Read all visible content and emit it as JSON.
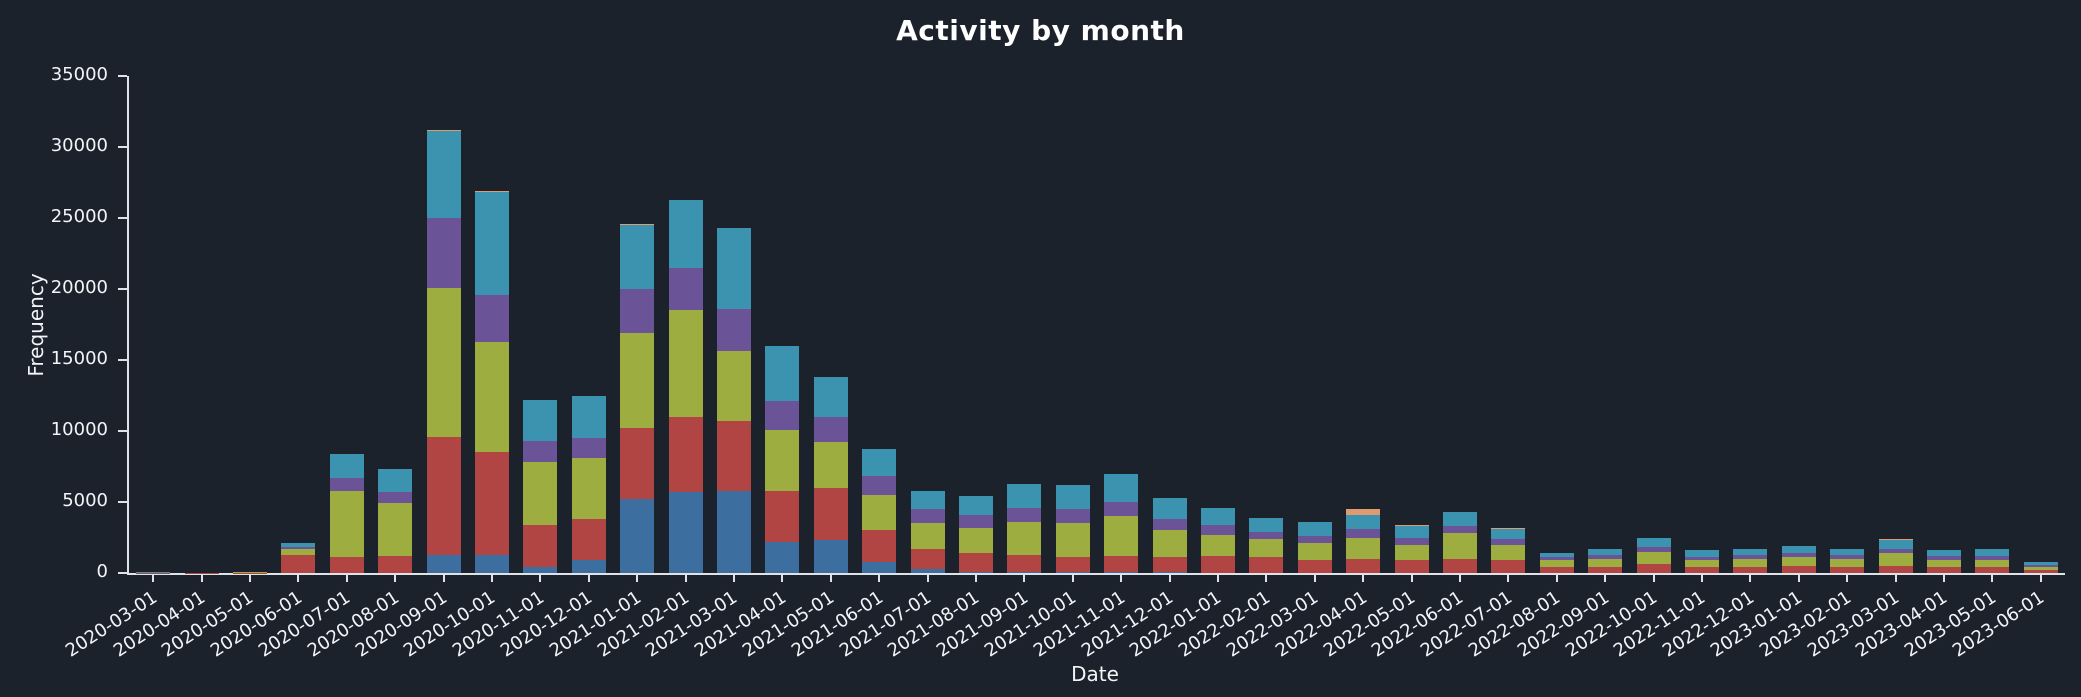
{
  "chart_data": {
    "type": "bar",
    "stacked": true,
    "title": "Activity by month",
    "xlabel": "Date",
    "ylabel": "Frequency",
    "ylim": [
      0,
      35000
    ],
    "yticks": [
      0,
      5000,
      10000,
      15000,
      20000,
      25000,
      30000,
      35000
    ],
    "grid": false,
    "legend": "none",
    "background_color": "#1b222c",
    "axis_color": "#dfe3e8",
    "text_color": "#f2f4f7",
    "categories": [
      "2020-03-01",
      "2020-04-01",
      "2020-05-01",
      "2020-06-01",
      "2020-07-01",
      "2020-08-01",
      "2020-09-01",
      "2020-10-01",
      "2020-11-01",
      "2020-12-01",
      "2021-01-01",
      "2021-02-01",
      "2021-03-01",
      "2021-04-01",
      "2021-05-01",
      "2021-06-01",
      "2021-07-01",
      "2021-08-01",
      "2021-09-01",
      "2021-10-01",
      "2021-11-01",
      "2021-12-01",
      "2022-01-01",
      "2022-02-01",
      "2022-03-01",
      "2022-04-01",
      "2022-05-01",
      "2022-06-01",
      "2022-07-01",
      "2022-08-01",
      "2022-09-01",
      "2022-10-01",
      "2022-11-01",
      "2022-12-01",
      "2023-01-01",
      "2023-02-01",
      "2023-03-01",
      "2023-04-01",
      "2023-05-01",
      "2023-06-01"
    ],
    "series": [
      {
        "name": "blue",
        "color": "#3c6e9f",
        "values": [
          0,
          0,
          0,
          0,
          0,
          0,
          1300,
          1300,
          400,
          900,
          5200,
          5700,
          5800,
          2200,
          2300,
          800,
          300,
          100,
          100,
          100,
          100,
          100,
          0,
          0,
          0,
          0,
          0,
          0,
          0,
          0,
          0,
          0,
          0,
          0,
          0,
          0,
          0,
          0,
          0,
          0
        ]
      },
      {
        "name": "red",
        "color": "#b04543",
        "values": [
          20,
          10,
          30,
          1250,
          1100,
          1200,
          8300,
          7200,
          3000,
          2900,
          5000,
          5300,
          4900,
          3600,
          3700,
          2200,
          1400,
          1300,
          1200,
          1000,
          1100,
          1000,
          1200,
          1100,
          900,
          1000,
          900,
          1000,
          900,
          400,
          400,
          600,
          400,
          450,
          500,
          450,
          500,
          450,
          400,
          200
        ]
      },
      {
        "name": "olive",
        "color": "#9dad3f",
        "values": [
          10,
          10,
          20,
          450,
          4700,
          3700,
          10500,
          7800,
          4400,
          4300,
          6700,
          7500,
          4900,
          4300,
          3200,
          2500,
          1800,
          1800,
          2300,
          2400,
          2800,
          1900,
          1500,
          1300,
          1200,
          1500,
          1100,
          1800,
          1100,
          500,
          600,
          900,
          500,
          550,
          600,
          550,
          900,
          500,
          550,
          250
        ]
      },
      {
        "name": "purple",
        "color": "#6a5397",
        "values": [
          0,
          0,
          10,
          150,
          900,
          800,
          4900,
          3300,
          1500,
          1400,
          3100,
          3000,
          3000,
          2000,
          1800,
          1300,
          1000,
          900,
          1000,
          1000,
          1000,
          800,
          700,
          500,
          500,
          600,
          500,
          500,
          400,
          200,
          250,
          300,
          250,
          250,
          300,
          250,
          300,
          250,
          250,
          150
        ]
      },
      {
        "name": "teal",
        "color": "#3b93b0",
        "values": [
          10,
          10,
          20,
          300,
          1700,
          1600,
          6100,
          7200,
          2900,
          3000,
          4500,
          4800,
          5700,
          3900,
          2800,
          1900,
          1300,
          1300,
          1700,
          1700,
          2000,
          1500,
          1200,
          1000,
          1000,
          1000,
          800,
          1000,
          700,
          300,
          450,
          700,
          450,
          450,
          500,
          450,
          600,
          400,
          500,
          200
        ]
      },
      {
        "name": "orange",
        "color": "#e09a6f",
        "values": [
          0,
          0,
          0,
          0,
          0,
          0,
          100,
          100,
          0,
          0,
          100,
          0,
          0,
          0,
          0,
          0,
          0,
          0,
          0,
          0,
          0,
          0,
          0,
          0,
          0,
          400,
          100,
          0,
          100,
          0,
          0,
          0,
          0,
          0,
          0,
          0,
          100,
          0,
          0,
          0
        ]
      }
    ]
  }
}
